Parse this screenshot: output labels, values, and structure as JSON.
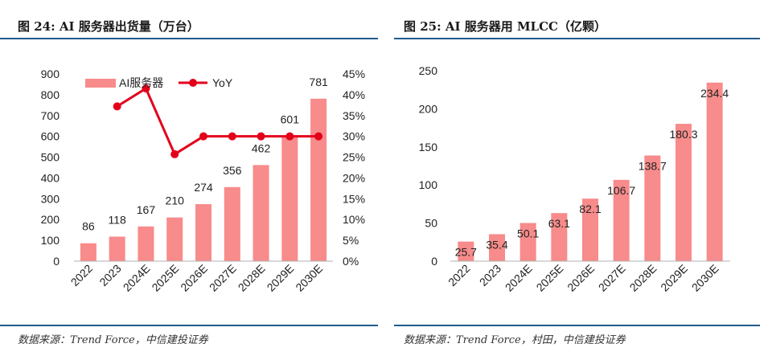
{
  "panels": [
    {
      "title": "图 24: AI 服务器出货量（万台）",
      "source": "数据来源：Trend Force，中信建投证券"
    },
    {
      "title": "图 25: AI 服务器用 MLCC（亿颗）",
      "source": "数据来源：Trend Force，村田，中信建投证券"
    }
  ],
  "colors": {
    "bar": "#f88b8b",
    "line": "#e3001b",
    "rule": "#1f5b8c"
  },
  "chart_data": [
    {
      "type": "bar",
      "title": "图 24: AI 服务器出货量（万台）",
      "categories": [
        "2022",
        "2023",
        "2024E",
        "2025E",
        "2026E",
        "2027E",
        "2028E",
        "2029E",
        "2030E"
      ],
      "series": [
        {
          "name": "AI服务器",
          "type": "bar",
          "axis": "left",
          "values": [
            86,
            118,
            167,
            210,
            274,
            356,
            462,
            601,
            781
          ],
          "labels": [
            "86",
            "118",
            "167",
            "210",
            "274",
            "356",
            "462",
            "601",
            "781"
          ]
        },
        {
          "name": "YoY",
          "type": "line",
          "axis": "right",
          "values": [
            null,
            37.2,
            41.5,
            25.7,
            30,
            30,
            30,
            30,
            30
          ]
        }
      ],
      "ylim": [
        0,
        900
      ],
      "yticks": [
        "0",
        "100",
        "200",
        "300",
        "400",
        "500",
        "600",
        "700",
        "800",
        "900"
      ],
      "y2lim": [
        0,
        45
      ],
      "y2ticks": [
        "0%",
        "5%",
        "10%",
        "15%",
        "20%",
        "25%",
        "30%",
        "35%",
        "40%",
        "45%"
      ],
      "legend": "top-left",
      "grid": false
    },
    {
      "type": "bar",
      "title": "图 25: AI 服务器用 MLCC（亿颗）",
      "categories": [
        "2022",
        "2023",
        "2024E",
        "2025E",
        "2026E",
        "2027E",
        "2028E",
        "2029E",
        "2030E"
      ],
      "values": [
        25.7,
        35.4,
        50.1,
        63.1,
        82.1,
        106.7,
        138.7,
        180.3,
        234.4
      ],
      "labels": [
        "25.7",
        "35.4",
        "50.1",
        "63.1",
        "82.1",
        "106.7",
        "138.7",
        "180.3",
        "234.4"
      ],
      "ylim": [
        0,
        250
      ],
      "yticks": [
        "0",
        "50",
        "100",
        "150",
        "200",
        "250"
      ],
      "grid": false
    }
  ]
}
